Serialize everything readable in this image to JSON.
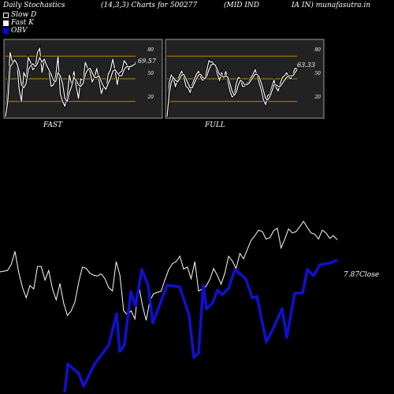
{
  "header": {
    "title": "Daily Stochastics",
    "params": "(14,3,3) Charts for 500277",
    "company": "(MID IND",
    "company2": "IA IN) munafasutra.in"
  },
  "legend": [
    {
      "label": "Slow  D",
      "color": "#000000"
    },
    {
      "label": "Fast K",
      "color": "#ffffff"
    },
    {
      "label": "OBV",
      "color": "#0000ff"
    }
  ],
  "colors": {
    "background": "#000000",
    "panel": "#222222",
    "level_line": "#b8860b",
    "white": "#ffffff",
    "obv": "#1010d0"
  },
  "chart_data": [
    {
      "type": "line",
      "title": "FAST",
      "ylim": [
        0,
        100
      ],
      "levels": [
        20,
        50,
        80
      ],
      "tick_labels": [
        "80",
        "50",
        "20"
      ],
      "last_value_label": "69.57",
      "series": [
        {
          "values": [
            0,
            40,
            85,
            72,
            75,
            70,
            35,
            20,
            58,
            52,
            78,
            72,
            62,
            65,
            85,
            90,
            58,
            74,
            70,
            60,
            40,
            42,
            54,
            80,
            30,
            20,
            14,
            26,
            55,
            42,
            60,
            40,
            24,
            50,
            48,
            72,
            64,
            60,
            46,
            52,
            64,
            48,
            30,
            40,
            34,
            56,
            62,
            76,
            62,
            42,
            58,
            60,
            74,
            70,
            62,
            68,
            68,
            72
          ]
        },
        {
          "values": [
            0,
            20,
            66,
            70,
            75,
            70,
            60,
            42,
            38,
            44,
            62,
            67,
            70,
            66,
            70,
            78,
            72,
            76,
            68,
            62,
            56,
            48,
            46,
            58,
            54,
            44,
            24,
            20,
            32,
            40,
            52,
            48,
            42,
            40,
            44,
            56,
            62,
            64,
            58,
            52,
            52,
            54,
            46,
            40,
            36,
            44,
            50,
            60,
            62,
            58,
            54,
            54,
            62,
            66,
            66,
            66,
            68,
            70
          ]
        }
      ]
    },
    {
      "type": "line",
      "title": "FULL",
      "ylim": [
        0,
        100
      ],
      "levels": [
        20,
        50,
        80
      ],
      "tick_labels": [
        "80",
        "50",
        "20"
      ],
      "last_value_label": "63.33",
      "series": [
        {
          "values": [
            0,
            45,
            55,
            50,
            40,
            48,
            55,
            60,
            52,
            40,
            38,
            32,
            42,
            50,
            56,
            60,
            52,
            48,
            50,
            62,
            74,
            72,
            72,
            66,
            56,
            48,
            58,
            50,
            60,
            46,
            34,
            26,
            28,
            44,
            52,
            50,
            40,
            40,
            44,
            46,
            52,
            56,
            62,
            54,
            44,
            34,
            22,
            16,
            28,
            30,
            40,
            48,
            38,
            34,
            44,
            52,
            54,
            58,
            52,
            50,
            56,
            64,
            63
          ]
        },
        {
          "values": [
            0,
            30,
            45,
            52,
            48,
            46,
            50,
            55,
            56,
            50,
            44,
            38,
            38,
            44,
            50,
            55,
            56,
            52,
            50,
            54,
            62,
            68,
            70,
            68,
            62,
            56,
            54,
            52,
            54,
            52,
            44,
            34,
            28,
            32,
            42,
            48,
            46,
            42,
            42,
            44,
            48,
            52,
            56,
            56,
            52,
            44,
            34,
            24,
            22,
            26,
            34,
            42,
            42,
            40,
            40,
            44,
            48,
            52,
            54,
            54,
            54,
            58,
            62
          ]
        }
      ]
    },
    {
      "type": "line",
      "title": "",
      "right_label": "7.87Close",
      "series": [
        {
          "name": "Close",
          "values": [
            175,
            176,
            177,
            186,
            205,
            174,
            152,
            137,
            155,
            150,
            183,
            183,
            163,
            177,
            150,
            134,
            158,
            129,
            111,
            118,
            131,
            160,
            182,
            180,
            173,
            170,
            169,
            172,
            165,
            152,
            147,
            190,
            170,
            118,
            112,
            118,
            106,
            156,
            126,
            104,
            133,
            143,
            145,
            147,
            163,
            178,
            187,
            190,
            198,
            179,
            182,
            165,
            190,
            147,
            150,
            154,
            164,
            180,
            170,
            157,
            173,
            198,
            191,
            180,
            202,
            194,
            208,
            221,
            228,
            236,
            234,
            223,
            225,
            235,
            239,
            210,
            223,
            238,
            232,
            234,
            241,
            249,
            240,
            232,
            230,
            223,
            236,
            232,
            224,
            228,
            222
          ]
        },
        {
          "name": "OBV",
          "values": [
            null,
            null,
            null,
            null,
            null,
            null,
            null,
            null,
            null,
            null,
            null,
            null,
            null,
            null,
            null,
            null,
            null,
            null,
            null,
            null,
            null,
            null,
            null,
            null,
            null,
            null,
            null,
            null,
            null,
            null,
            null,
            null,
            null,
            null,
            null,
            null,
            null,
            null,
            null,
            null,
            null,
            null,
            null,
            null,
            null,
            null,
            null,
            null,
            null,
            null,
            null,
            null,
            null,
            null,
            null,
            null,
            null,
            null,
            null,
            null,
            null,
            null,
            null,
            null,
            null,
            null,
            null,
            null,
            null,
            null,
            null,
            null,
            null,
            null,
            null,
            null,
            null,
            null,
            null,
            null,
            null,
            null,
            null,
            null,
            null,
            null,
            null,
            null,
            null,
            null,
            null
          ]
        }
      ]
    }
  ]
}
